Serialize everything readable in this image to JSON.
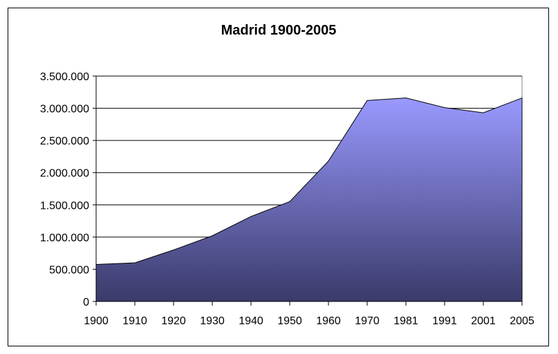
{
  "chart_data": {
    "type": "area",
    "title": "Madrid 1900-2005",
    "xlabel": "",
    "ylabel": "",
    "categories": [
      "1900",
      "1910",
      "1920",
      "1930",
      "1940",
      "1950",
      "1960",
      "1970",
      "1981",
      "1991",
      "2001",
      "2005"
    ],
    "series": [
      {
        "values": [
          575000,
          600000,
          800000,
          1020000,
          1320000,
          1550000,
          2180000,
          3120000,
          3160000,
          3010000,
          2930000,
          3160000
        ]
      }
    ],
    "ylim": [
      0,
      3500000
    ],
    "yticks": [
      0,
      500000,
      1000000,
      1500000,
      2000000,
      2500000,
      3000000,
      3500000
    ],
    "ytick_labels": [
      "0",
      "500.000",
      "1.000.000",
      "1.500.000",
      "2.000.000",
      "2.500.000",
      "3.000.000",
      "3.500.000"
    ],
    "grid": true,
    "legend": "none",
    "colors": {
      "fill_top": "#9999ff",
      "fill_bottom": "#3a3a6a",
      "outline": "#000000",
      "grid": "#000000"
    }
  }
}
